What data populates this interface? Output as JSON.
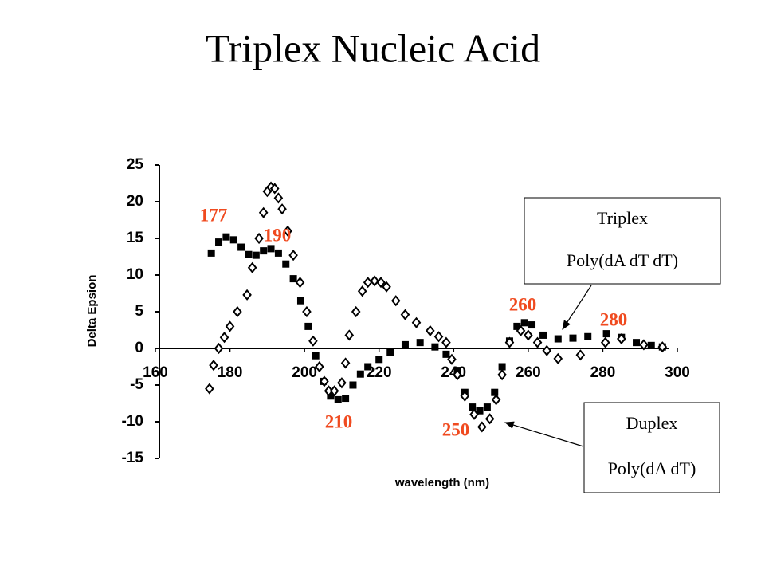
{
  "chart_data": {
    "type": "scatter",
    "title": "Triplex Nucleic Acid",
    "x_label": "wavelength (nm)",
    "y_label": "Delta Epsion",
    "xlim": [
      160,
      300
    ],
    "ylim": [
      -15,
      25
    ],
    "xticks": [
      160,
      180,
      200,
      220,
      240,
      260,
      280,
      300
    ],
    "yticks": [
      -15,
      -10,
      -5,
      0,
      5,
      10,
      15,
      20,
      25
    ],
    "series": [
      {
        "name": "Triplex",
        "description": "Poly(dA dT dT)",
        "color": "#000000",
        "marker": "square",
        "x": [
          175,
          177,
          179,
          181,
          183,
          185,
          187,
          189,
          191,
          193,
          195,
          197,
          199,
          201,
          203,
          205,
          207,
          209,
          211,
          213,
          215,
          217,
          220,
          223,
          227,
          231,
          235,
          238,
          241,
          243,
          245,
          247,
          249,
          251,
          253,
          255,
          257,
          259,
          261,
          264,
          268,
          272,
          276,
          281,
          285,
          289,
          293,
          296
        ],
        "values": [
          13,
          14.5,
          15.2,
          14.8,
          13.8,
          12.8,
          12.7,
          13.3,
          13.6,
          13,
          11.5,
          9.5,
          6.5,
          3,
          -1,
          -4.5,
          -6.5,
          -7,
          -6.8,
          -5,
          -3.5,
          -2.5,
          -1.5,
          -0.5,
          0.5,
          0.8,
          0.2,
          -0.8,
          -3,
          -6,
          -8,
          -8.5,
          -8,
          -6,
          -2.5,
          1,
          3,
          3.5,
          3.2,
          1.8,
          1.3,
          1.4,
          1.6,
          2,
          1.5,
          0.8,
          0.4,
          0.2
        ]
      },
      {
        "name": "Duplex",
        "description": "Poly(dA dT)",
        "color": "#000000",
        "marker": "diamond",
        "x": [
          174.5,
          175.6,
          177,
          178.5,
          180,
          182,
          184.6,
          186,
          187.8,
          189,
          190,
          191,
          192,
          193,
          194,
          195.5,
          197,
          198.8,
          200.6,
          202.3,
          204,
          205.3,
          206.5,
          208,
          210,
          211,
          212,
          213.8,
          215.5,
          217,
          218.8,
          220.5,
          222,
          224.5,
          227,
          230,
          233.7,
          236,
          238,
          239.5,
          241,
          243,
          245.5,
          247.6,
          249.7,
          251.4,
          253,
          255,
          258,
          260,
          262.5,
          265,
          268,
          274,
          280.7,
          285,
          291,
          296
        ],
        "values": [
          -5.5,
          -2.3,
          0,
          1.5,
          3,
          5,
          7.3,
          11,
          15,
          18.5,
          21.4,
          22,
          21.8,
          20.5,
          19,
          16,
          12.7,
          9,
          5,
          1,
          -2.5,
          -4.5,
          -5.8,
          -5.8,
          -4.7,
          -2,
          1.8,
          5,
          7.8,
          9,
          9.2,
          9,
          8.4,
          6.5,
          4.6,
          3.5,
          2.4,
          1.6,
          0.8,
          -1.5,
          -3.6,
          -6.5,
          -9,
          -10.7,
          -9.6,
          -7,
          -3.6,
          0.8,
          2.4,
          1.8,
          0.8,
          -0.3,
          -1.4,
          -0.9,
          0.8,
          1.3,
          0.5,
          0.2
        ]
      }
    ],
    "peak_labels": [
      "177",
      "190",
      "210",
      "250",
      "260",
      "280"
    ]
  }
}
